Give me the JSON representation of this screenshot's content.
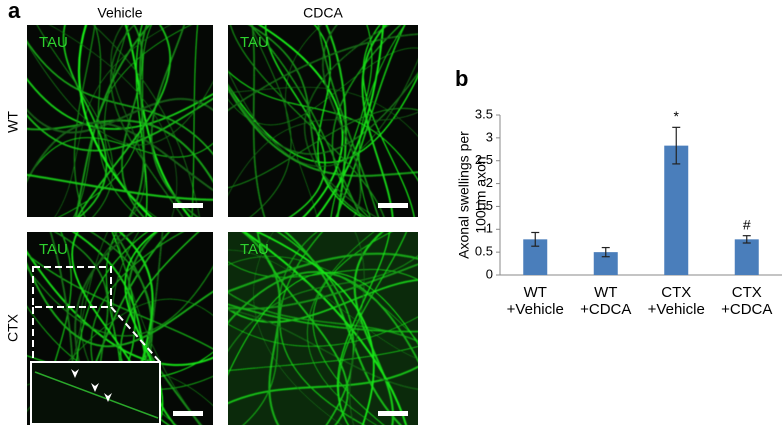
{
  "panel_a": {
    "label": "a",
    "columns": [
      "Vehicle",
      "CDCA"
    ],
    "rows": [
      "WT",
      "CTX"
    ],
    "stain": [
      "TAU",
      "TAU",
      "TAU",
      "TAU"
    ]
  },
  "chart_data": {
    "type": "bar",
    "panel_label": "b",
    "y_label": [
      "Axonal swellings per",
      "100μm axon"
    ],
    "categories": [
      [
        "WT",
        "+Vehicle"
      ],
      [
        "WT",
        "+CDCA"
      ],
      [
        "CTX",
        "+Vehicle"
      ],
      [
        "CTX",
        "+CDCA"
      ]
    ],
    "values": [
      0.78,
      0.5,
      2.83,
      0.78
    ],
    "errors": [
      0.15,
      0.1,
      0.4,
      0.08
    ],
    "bar_labels": [
      null,
      null,
      "*",
      "#"
    ],
    "color": "#4a7ebb",
    "ylim": [
      0,
      3.5
    ],
    "yticks": [
      0,
      0.5,
      1,
      1.5,
      2,
      2.5,
      3,
      3.5
    ]
  }
}
